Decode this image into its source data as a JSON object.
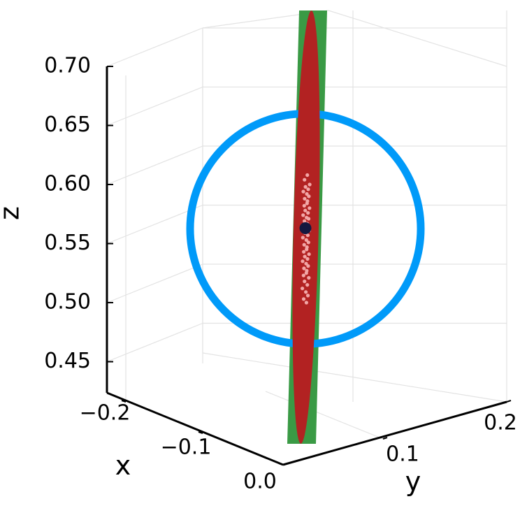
{
  "chart_data": {
    "type": "scatter",
    "projection": "3d",
    "xlabel": "x",
    "ylabel": "y",
    "zlabel": "z",
    "x_ticks": [
      "−0.2",
      "−0.1",
      "0.0"
    ],
    "y_ticks": [
      "0.1",
      "0.2"
    ],
    "z_ticks": [
      "0.45",
      "0.50",
      "0.55",
      "0.60",
      "0.65",
      "0.70"
    ],
    "zlim": [
      0.42,
      0.7
    ],
    "grid": true,
    "legend": "none",
    "colors": {
      "circle": "#009af9",
      "band": "#3a9a45",
      "ellipse": "#b22222",
      "samples": "#f2a7a7",
      "center": "#15183f",
      "grid": "#e3e3e3",
      "axis": "#000000"
    },
    "center_point": {
      "z": 0.563
    },
    "circle_z_range": [
      0.465,
      0.66
    ],
    "sample_points_z": [
      0.608,
      0.604,
      0.6,
      0.598,
      0.596,
      0.594,
      0.592,
      0.59,
      0.588,
      0.586,
      0.584,
      0.582,
      0.58,
      0.578,
      0.576,
      0.574,
      0.572,
      0.571,
      0.569,
      0.567,
      0.565,
      0.563,
      0.561,
      0.559,
      0.557,
      0.555,
      0.553,
      0.551,
      0.549,
      0.547,
      0.545,
      0.543,
      0.541,
      0.539,
      0.537,
      0.535,
      0.533,
      0.531,
      0.529,
      0.527,
      0.525,
      0.523,
      0.521,
      0.518,
      0.515,
      0.512,
      0.509,
      0.506,
      0.503,
      0.5
    ]
  }
}
